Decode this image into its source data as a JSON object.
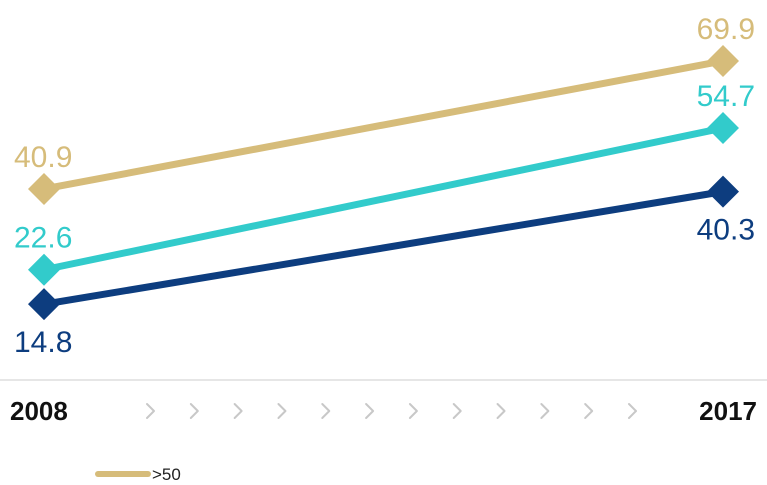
{
  "chart_data": {
    "type": "line",
    "x": [
      "2008",
      "2017"
    ],
    "ylim": [
      0,
      80
    ],
    "grid": false,
    "legend_position": "bottom-left",
    "series": [
      {
        "name": ">50",
        "values": [
          40.9,
          69.9
        ],
        "color": "#d6bc7a",
        "marker": "diamond"
      },
      {
        "name": "",
        "values": [
          22.6,
          54.7
        ],
        "color": "#32cbcb",
        "marker": "diamond"
      },
      {
        "name": "",
        "values": [
          14.8,
          40.3
        ],
        "color": "#0d3d7f",
        "marker": "diamond"
      }
    ],
    "axis_decoration": "chevron-right-icon",
    "chevron_count": 12
  }
}
